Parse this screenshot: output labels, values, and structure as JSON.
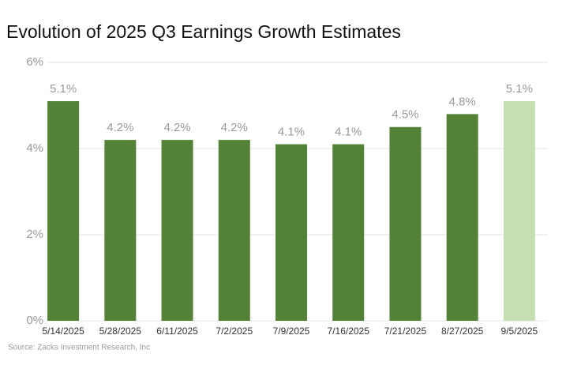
{
  "chart_data": {
    "type": "bar",
    "title": "Evolution of 2025 Q3 Earnings Growth Estimates",
    "source": "Source: Zacks Investment Research, Inc",
    "categories": [
      "5/14/2025",
      "5/28/2025",
      "6/11/2025",
      "7/2/2025",
      "7/9/2025",
      "7/16/2025",
      "7/21/2025",
      "8/27/2025",
      "9/5/2025"
    ],
    "values": [
      5.1,
      4.2,
      4.2,
      4.2,
      4.1,
      4.1,
      4.5,
      4.8,
      5.1
    ],
    "value_labels": [
      "5.1%",
      "4.2%",
      "4.2%",
      "4.2%",
      "4.1%",
      "4.1%",
      "4.5%",
      "4.8%",
      "5.1%"
    ],
    "colors": [
      "#538135",
      "#538135",
      "#538135",
      "#538135",
      "#538135",
      "#538135",
      "#538135",
      "#538135",
      "#c5e0b3"
    ],
    "ylim": [
      0,
      6
    ],
    "yticks": [
      {
        "value": 0,
        "label": "0%"
      },
      {
        "value": 2,
        "label": "2%"
      },
      {
        "value": 4,
        "label": "4%"
      },
      {
        "value": 6,
        "label": "6%"
      }
    ],
    "grid": true
  }
}
